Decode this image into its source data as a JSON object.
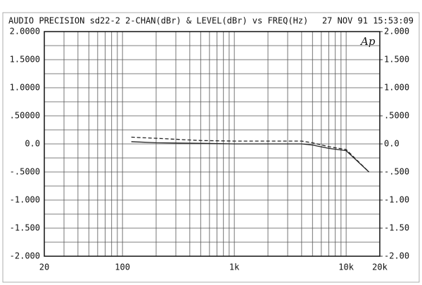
{
  "chart_data": {
    "type": "line",
    "title": "AUDIO PRECISION sd22-2 2-CHAN(dBr) & LEVEL(dBr) vs FREQ(Hz)",
    "timestamp": "27 NOV 91 15:53:09",
    "logo": "Ap",
    "xscale": "log",
    "xlim": [
      20,
      20000
    ],
    "xticks": [
      20,
      100,
      {
        "value": 1000,
        "label": "1k"
      },
      {
        "value": 10000,
        "label": "10k"
      },
      {
        "value": 20000,
        "label": "20k"
      }
    ],
    "xgrid": [
      30,
      40,
      50,
      60,
      70,
      80,
      90,
      200,
      300,
      400,
      500,
      600,
      700,
      800,
      900,
      2000,
      3000,
      4000,
      5000,
      6000,
      7000,
      8000,
      9000
    ],
    "ylim": [
      -2,
      2
    ],
    "yticks": [
      {
        "value": 2,
        "label": "2.0000"
      },
      {
        "value": 1.5,
        "label": "1.5000"
      },
      {
        "value": 1,
        "label": "1.0000"
      },
      {
        "value": 0.5,
        "label": ".50000"
      },
      {
        "value": 0,
        "label": "0.0"
      },
      {
        "value": -0.5,
        "label": "-.5000"
      },
      {
        "value": -1,
        "label": "-1.000"
      },
      {
        "value": -1.5,
        "label": "-1.500"
      },
      {
        "value": -2,
        "label": "-2.000"
      }
    ],
    "ygrid": [
      1.75,
      1.25,
      0.75,
      0.25,
      -0.25,
      -0.75,
      -1.25,
      -1.75
    ],
    "y2lim": [
      -2,
      2
    ],
    "y2ticks": [
      {
        "value": 2,
        "label": "2.000"
      },
      {
        "value": 1.5,
        "label": "1.500"
      },
      {
        "value": 1,
        "label": "1.000"
      },
      {
        "value": 0.5,
        "label": ".5000"
      },
      {
        "value": 0,
        "label": "0.0"
      },
      {
        "value": -0.5,
        "label": "-.500"
      },
      {
        "value": -1,
        "label": "-1.00"
      },
      {
        "value": -1.5,
        "label": "-1.50"
      },
      {
        "value": -2,
        "label": "-2.00"
      }
    ],
    "grid": true,
    "x": [
      120,
      200,
      500,
      1000,
      2000,
      4000,
      5000,
      7000,
      10000,
      16000
    ],
    "series": [
      {
        "color": "#222222",
        "dash": false,
        "values": [
          0.04,
          0.02,
          0.01,
          0.0,
          0.0,
          0.0,
          -0.02,
          -0.08,
          -0.12,
          -0.5
        ]
      },
      {
        "color": "#222222",
        "dash": true,
        "values": [
          0.12,
          0.1,
          0.06,
          0.05,
          0.05,
          0.05,
          0.02,
          -0.05,
          -0.1,
          -0.5
        ]
      }
    ]
  }
}
